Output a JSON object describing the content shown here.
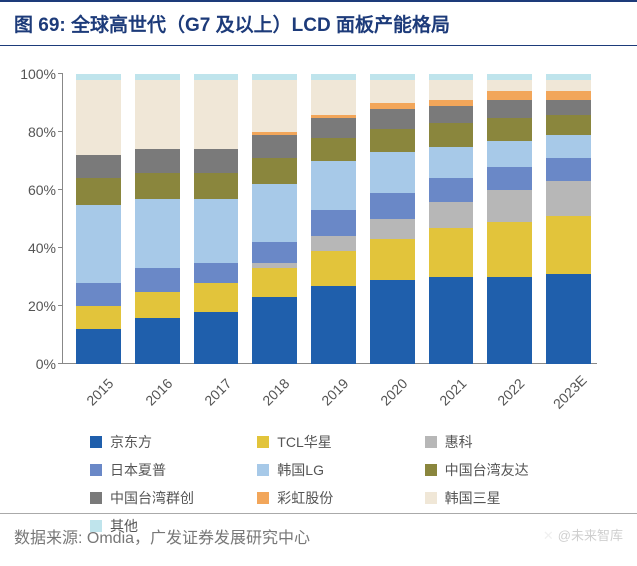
{
  "title_prefix": "图 69:",
  "title_text": "全球高世代（G7 及以上）LCD 面板产能格局",
  "title_fontsize": 19,
  "title_color": "#1d3b7a",
  "source_label": "数据来源: ",
  "source_text": "Omdia，广发证券发展研究中心",
  "source_fontsize": 16,
  "watermark": "@未来智库",
  "chart": {
    "type": "stacked-bar",
    "ylim": [
      0,
      100
    ],
    "ytick_step": 20,
    "y_suffix": "%",
    "label_fontsize": 14,
    "background_color": "#ffffff",
    "axis_color": "#888888",
    "tick_color": "#555555",
    "bar_gap": 14,
    "categories": [
      "2015",
      "2016",
      "2017",
      "2018",
      "2019",
      "2020",
      "2021",
      "2022",
      "2023E"
    ],
    "series": [
      {
        "name": "京东方",
        "color": "#1f5fac",
        "values": [
          12,
          16,
          18,
          23,
          27,
          29,
          30,
          30,
          31
        ]
      },
      {
        "name": "TCL华星",
        "color": "#e2c43b",
        "values": [
          8,
          9,
          10,
          10,
          12,
          14,
          17,
          19,
          20
        ]
      },
      {
        "name": "惠科",
        "color": "#b7b7b7",
        "values": [
          0,
          0,
          0,
          2,
          5,
          7,
          9,
          11,
          12
        ]
      },
      {
        "name": "日本夏普",
        "color": "#6a88c7",
        "values": [
          8,
          8,
          7,
          7,
          9,
          9,
          8,
          8,
          8
        ]
      },
      {
        "name": "韩国LG",
        "color": "#a7c9e8",
        "values": [
          27,
          24,
          22,
          20,
          17,
          14,
          11,
          9,
          8
        ]
      },
      {
        "name": "中国台湾友达",
        "color": "#8a863d",
        "values": [
          9,
          9,
          9,
          9,
          8,
          8,
          8,
          8,
          7
        ]
      },
      {
        "name": "中国台湾群创",
        "color": "#7a7a7a",
        "values": [
          8,
          8,
          8,
          8,
          7,
          7,
          6,
          6,
          5
        ]
      },
      {
        "name": "彩虹股份",
        "color": "#f2a65a",
        "values": [
          0,
          0,
          0,
          1,
          1,
          2,
          2,
          3,
          3
        ]
      },
      {
        "name": "韩国三星",
        "color": "#f0e7d7",
        "values": [
          26,
          24,
          24,
          18,
          12,
          8,
          7,
          4,
          4
        ]
      },
      {
        "name": "其他",
        "color": "#bfe4ec",
        "values": [
          2,
          2,
          2,
          2,
          2,
          2,
          2,
          2,
          2
        ]
      }
    ]
  }
}
